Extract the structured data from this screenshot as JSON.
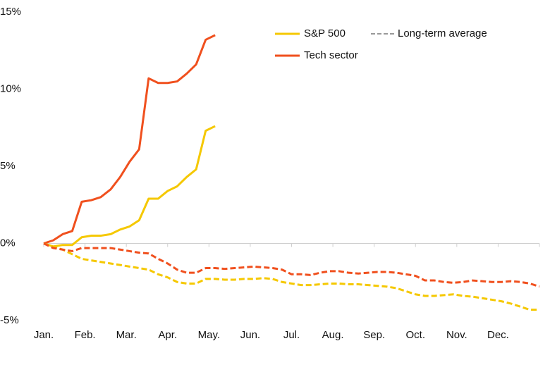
{
  "chart_data": {
    "type": "line",
    "x": [
      0,
      0.23,
      0.46,
      0.69,
      0.92,
      1.15,
      1.38,
      1.62,
      1.85,
      2.08,
      2.31,
      2.54,
      2.77,
      3,
      3.23,
      3.46,
      3.69,
      3.92,
      4.15,
      4.38,
      4.62,
      4.85,
      5.08,
      5.31,
      5.54,
      5.77,
      6,
      6.23,
      6.46,
      6.69,
      6.92,
      7.15,
      7.38,
      7.62,
      7.85,
      8.08,
      8.31,
      8.54,
      8.77,
      9,
      9.23,
      9.46,
      9.69,
      9.92,
      10.15,
      10.38,
      10.62,
      10.85,
      11.08,
      11.31,
      11.54,
      11.77,
      12
    ],
    "series": [
      {
        "name": "S&P 500",
        "color": "#f5c800",
        "dashed": false,
        "values": [
          0,
          -0.2,
          -0.1,
          -0.1,
          0.4,
          0.5,
          0.5,
          0.6,
          0.9,
          1.1,
          1.5,
          2.9,
          2.9,
          3.4,
          3.7,
          4.3,
          4.8,
          7.3,
          7.6,
          null,
          null,
          null,
          null,
          null,
          null,
          null,
          null,
          null,
          null,
          null,
          null,
          null,
          null,
          null,
          null,
          null,
          null,
          null,
          null,
          null,
          null,
          null,
          null,
          null,
          null,
          null,
          null,
          null,
          null,
          null,
          null,
          null,
          null
        ]
      },
      {
        "name": "Tech sector",
        "color": "#f0501e",
        "dashed": false,
        "values": [
          0,
          0.2,
          0.6,
          0.8,
          2.7,
          2.8,
          3.0,
          3.5,
          4.3,
          5.3,
          6.1,
          10.7,
          10.4,
          10.4,
          10.5,
          11.0,
          11.6,
          13.2,
          13.5,
          null,
          null,
          null,
          null,
          null,
          null,
          null,
          null,
          null,
          null,
          null,
          null,
          null,
          null,
          null,
          null,
          null,
          null,
          null,
          null,
          null,
          null,
          null,
          null,
          null,
          null,
          null,
          null,
          null,
          null,
          null,
          null,
          null,
          null
        ]
      },
      {
        "color": "#f5c800",
        "dashed": true,
        "values": [
          0,
          -0.2,
          -0.4,
          -0.7,
          -1.0,
          -1.1,
          -1.2,
          -1.3,
          -1.4,
          -1.5,
          -1.6,
          -1.7,
          -2.0,
          -2.2,
          -2.5,
          -2.6,
          -2.6,
          -2.3,
          -2.3,
          -2.35,
          -2.35,
          -2.3,
          -2.3,
          -2.25,
          -2.3,
          -2.5,
          -2.6,
          -2.7,
          -2.7,
          -2.65,
          -2.6,
          -2.6,
          -2.65,
          -2.65,
          -2.7,
          -2.75,
          -2.8,
          -2.9,
          -3.1,
          -3.3,
          -3.4,
          -3.4,
          -3.35,
          -3.3,
          -3.4,
          -3.45,
          -3.55,
          -3.65,
          -3.75,
          -3.9,
          -4.1,
          -4.3,
          -4.3
        ]
      },
      {
        "color": "#f0501e",
        "dashed": true,
        "values": [
          0,
          -0.3,
          -0.4,
          -0.5,
          -0.3,
          -0.3,
          -0.3,
          -0.3,
          -0.4,
          -0.5,
          -0.6,
          -0.65,
          -1.0,
          -1.3,
          -1.7,
          -1.9,
          -1.9,
          -1.6,
          -1.6,
          -1.65,
          -1.6,
          -1.55,
          -1.5,
          -1.55,
          -1.6,
          -1.7,
          -2.0,
          -2.0,
          -2.05,
          -1.9,
          -1.8,
          -1.8,
          -1.9,
          -1.95,
          -1.9,
          -1.85,
          -1.85,
          -1.9,
          -2.0,
          -2.1,
          -2.4,
          -2.4,
          -2.5,
          -2.55,
          -2.5,
          -2.4,
          -2.45,
          -2.5,
          -2.5,
          -2.45,
          -2.5,
          -2.6,
          -2.8
        ]
      }
    ],
    "dashed_legend": {
      "label": "Long-term average",
      "color": "#999999"
    },
    "xlim": [
      0,
      12
    ],
    "xticks": [
      {
        "value": 0,
        "label": "Jan."
      },
      {
        "value": 1,
        "label": "Feb."
      },
      {
        "value": 2,
        "label": "Mar."
      },
      {
        "value": 3,
        "label": "Apr."
      },
      {
        "value": 4,
        "label": "May."
      },
      {
        "value": 5,
        "label": "Jun."
      },
      {
        "value": 6,
        "label": "Jul."
      },
      {
        "value": 7,
        "label": "Aug."
      },
      {
        "value": 8,
        "label": "Sep."
      },
      {
        "value": 9,
        "label": "Oct."
      },
      {
        "value": 10,
        "label": "Nov."
      },
      {
        "value": 11,
        "label": "Dec."
      }
    ],
    "ylim": [
      -5,
      15
    ],
    "yticks": [
      {
        "value": -5,
        "label": "-5%"
      },
      {
        "value": 0,
        "label": "0%"
      },
      {
        "value": 5,
        "label": "5%"
      },
      {
        "value": 10,
        "label": "10%"
      },
      {
        "value": 15,
        "label": "15%"
      }
    ],
    "grid": false
  }
}
